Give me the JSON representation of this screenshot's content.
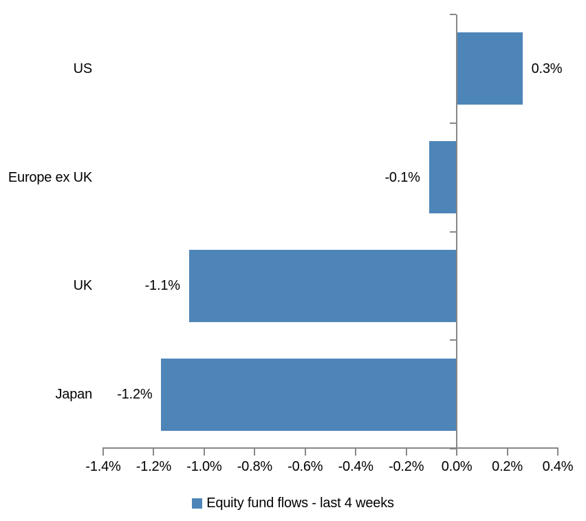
{
  "chart_data": {
    "type": "bar",
    "orientation": "horizontal",
    "title": "",
    "categories": [
      "US",
      "Europe ex UK",
      "UK",
      "Japan"
    ],
    "series": [
      {
        "name": "Equity fund flows - last 4 weeks",
        "values_pct": [
          0.26,
          -0.11,
          -1.06,
          -1.17
        ],
        "data_labels": [
          "0.3%",
          "-0.1%",
          "-1.1%",
          "-1.2%"
        ]
      }
    ],
    "x_axis": {
      "min_pct": -1.4,
      "max_pct": 0.4,
      "tick_step_pct": 0.2,
      "tick_labels": [
        "-1.4%",
        "-1.2%",
        "-1.0%",
        "-0.8%",
        "-0.6%",
        "-0.4%",
        "-0.2%",
        "0.0%",
        "0.2%",
        "0.4%"
      ]
    },
    "y_axis": {
      "zero_line": true,
      "category_boundary_tick_count": 5
    },
    "legend": {
      "position": "bottom-center",
      "label": "Equity fund flows - last 4 weeks"
    },
    "colors": {
      "bar": "#4E85B8",
      "axis": "#878787",
      "text": "#000000",
      "background": "#FFFFFF"
    },
    "grid": false
  }
}
